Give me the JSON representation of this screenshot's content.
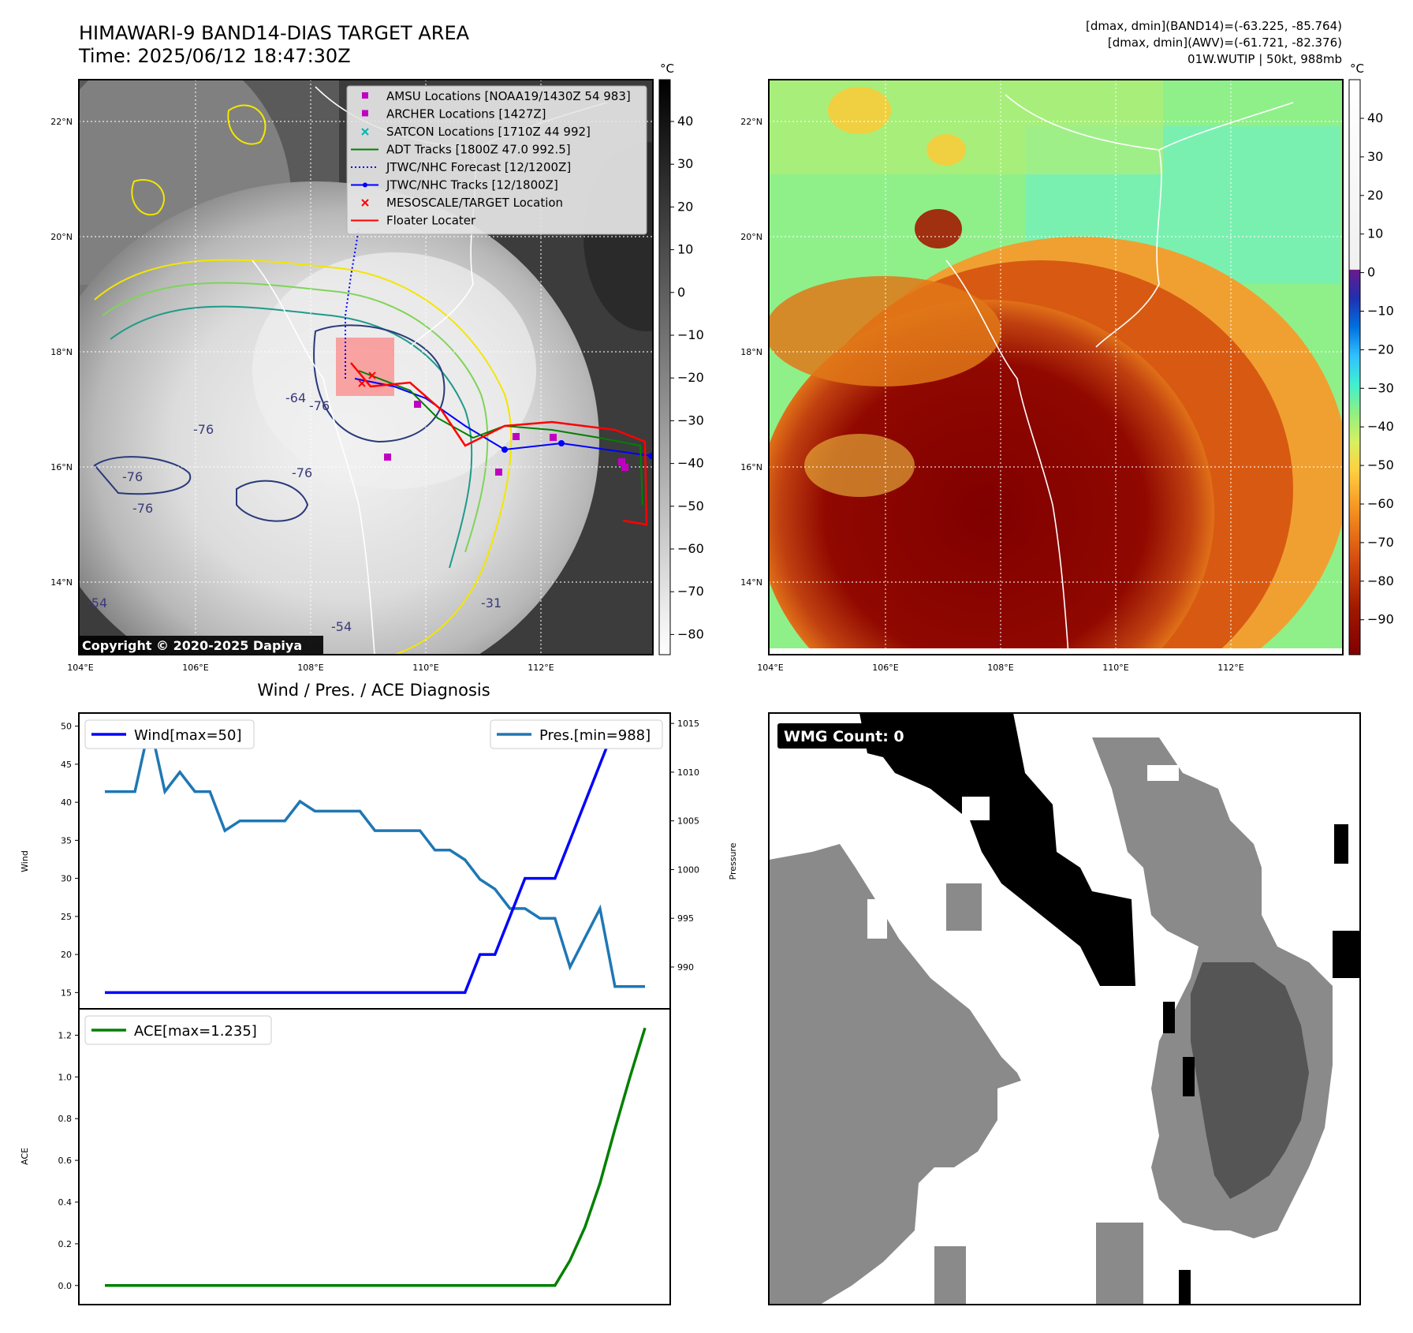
{
  "header": {
    "title_line1": "HIMAWARI-9 BAND14-DIAS TARGET AREA",
    "title_line2": "Time: 2025/06/12 18:47:30Z",
    "stats_line1": "[dmax, dmin](BAND14)=(-63.225, -85.764)",
    "stats_line2": "[dmax, dmin](AWV)=(-61.721, -82.376)",
    "stats_line3": "01W.WUTIP | 50kt, 988mb"
  },
  "map_axes": {
    "lon_labels": [
      "104°E",
      "106°E",
      "108°E",
      "110°E",
      "112°E"
    ],
    "lat_labels": [
      "22°N",
      "20°N",
      "18°N",
      "16°N",
      "14°N"
    ]
  },
  "ir_panel": {
    "copyright": "Copyright © 2020-2025 Dapiya",
    "colorbar_unit": "°C",
    "colorbar_ticks": [
      "40",
      "30",
      "20",
      "10",
      "0",
      "−10",
      "−20",
      "−30",
      "−40",
      "−50",
      "−60",
      "−70",
      "−80"
    ],
    "contour_labels": [
      "-64",
      "-76",
      "-76",
      "-76",
      "-76",
      "-76",
      "-54",
      "-54",
      "-31"
    ],
    "legend": [
      {
        "label": "AMSU Locations [NOAA19/1430Z 54 983]",
        "marker": "square",
        "color": "#c000c0"
      },
      {
        "label": "ARCHER Locations [1427Z]",
        "marker": "square",
        "color": "#c000c0"
      },
      {
        "label": "SATCON Locations [1710Z 44 992]",
        "marker": "x",
        "color": "#00b4b4"
      },
      {
        "label": "ADT Tracks [1800Z 47.0 992.5]",
        "marker": "line",
        "color": "#008000"
      },
      {
        "label": "JTWC/NHC Forecast [12/1200Z]",
        "marker": "dotted",
        "color": "#0000ff"
      },
      {
        "label": "JTWC/NHC Tracks [12/1800Z]",
        "marker": "line-dot",
        "color": "#0000ff"
      },
      {
        "label": "MESOSCALE/TARGET Location",
        "marker": "x",
        "color": "#ff0000"
      },
      {
        "label": "Floater Locater",
        "marker": "line",
        "color": "#ff0000"
      }
    ]
  },
  "awv_panel": {
    "colorbar_unit": "°C",
    "colorbar_ticks": [
      "40",
      "30",
      "20",
      "10",
      "0",
      "−10",
      "−20",
      "−30",
      "−40",
      "−50",
      "−60",
      "−70",
      "−80",
      "−90"
    ]
  },
  "diagnosis": {
    "title": "Wind / Pres. / ACE Diagnosis",
    "wind_ylabel": "Wind",
    "pres_ylabel": "Pressure",
    "ace_ylabel": "ACE",
    "wind_legend": "Wind[max=50]",
    "pres_legend": "Pres.[min=988]",
    "ace_legend": "ACE[max=1.235]",
    "colors": {
      "wind": "#0000ff",
      "pres": "#1f77b4",
      "ace": "#008000"
    }
  },
  "chart_data": [
    {
      "type": "line",
      "ylabel": "Wind",
      "ylim": [
        14,
        51
      ],
      "yticks": [
        15,
        20,
        25,
        30,
        35,
        40,
        45,
        50
      ],
      "series": [
        {
          "name": "Wind[max=50]",
          "values": [
            15,
            15,
            15,
            15,
            15,
            15,
            15,
            15,
            15,
            15,
            15,
            15,
            15,
            15,
            15,
            15,
            15,
            15,
            15,
            15,
            15,
            15,
            15,
            15,
            15,
            20,
            20,
            25,
            30,
            30,
            30,
            35,
            40,
            45,
            50,
            50,
            50
          ]
        }
      ]
    },
    {
      "type": "line",
      "ylabel": "Pressure",
      "ylim": [
        986.6,
        1015.5
      ],
      "yticks": [
        990,
        995,
        1000,
        1005,
        1010,
        1015
      ],
      "series": [
        {
          "name": "Pres.[min=988]",
          "values": [
            1008,
            1008,
            1008,
            1015,
            1008,
            1010,
            1008,
            1008,
            1004,
            1005,
            1005,
            1005,
            1005,
            1007,
            1006,
            1006,
            1006,
            1006,
            1004,
            1004,
            1004,
            1004,
            1002,
            1002,
            1001,
            999,
            998,
            996,
            996,
            995,
            995,
            990,
            993,
            996,
            988,
            988,
            988
          ]
        }
      ]
    },
    {
      "type": "line",
      "ylabel": "ACE",
      "ylim": [
        -0.05,
        1.3
      ],
      "yticks": [
        0.0,
        0.2,
        0.4,
        0.6,
        0.8,
        1.0,
        1.2
      ],
      "series": [
        {
          "name": "ACE[max=1.235]",
          "values": [
            0,
            0,
            0,
            0,
            0,
            0,
            0,
            0,
            0,
            0,
            0,
            0,
            0,
            0,
            0,
            0,
            0,
            0,
            0,
            0,
            0,
            0,
            0,
            0,
            0,
            0,
            0,
            0,
            0,
            0,
            0,
            0.12,
            0.28,
            0.49,
            0.75,
            1.0,
            1.235
          ]
        }
      ]
    }
  ],
  "wmg_panel": {
    "count_label": "WMG Count: 0"
  }
}
